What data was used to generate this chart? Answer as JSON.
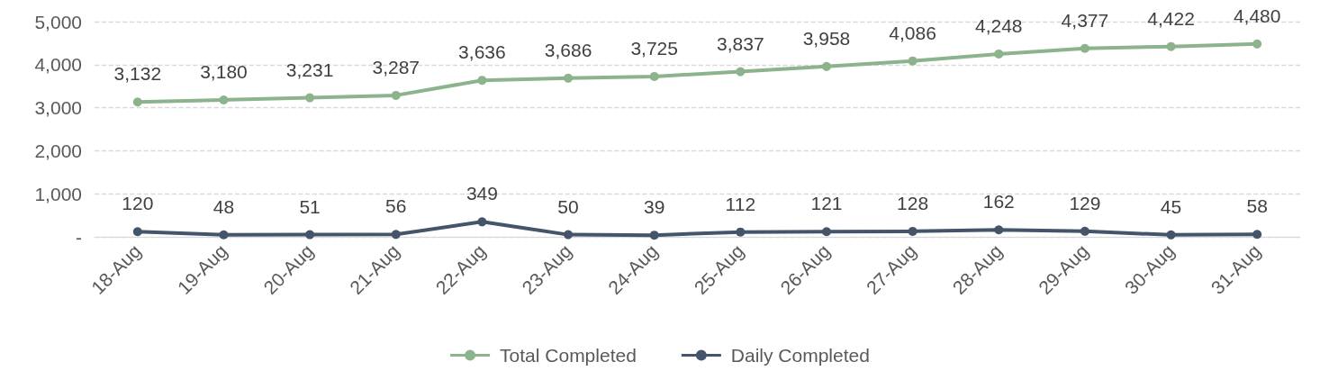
{
  "chart_data": {
    "type": "line",
    "categories": [
      "18-Aug",
      "19-Aug",
      "20-Aug",
      "21-Aug",
      "22-Aug",
      "23-Aug",
      "24-Aug",
      "25-Aug",
      "26-Aug",
      "27-Aug",
      "28-Aug",
      "29-Aug",
      "30-Aug",
      "31-Aug"
    ],
    "series": [
      {
        "name": "Total Completed",
        "color": "#8cb38c",
        "values": [
          3132,
          3180,
          3231,
          3287,
          3636,
          3686,
          3725,
          3837,
          3958,
          4086,
          4248,
          4377,
          4422,
          4480
        ],
        "value_labels": [
          "3,132",
          "3,180",
          "3,231",
          "3,287",
          "3,636",
          "3,686",
          "3,725",
          "3,837",
          "3,958",
          "4,086",
          "4,248",
          "4,377",
          "4,422",
          "4,480"
        ]
      },
      {
        "name": "Daily Completed",
        "color": "#44546a",
        "values": [
          120,
          48,
          51,
          56,
          349,
          50,
          39,
          112,
          121,
          128,
          162,
          129,
          45,
          58
        ],
        "value_labels": [
          "120",
          "48",
          "51",
          "56",
          "349",
          "50",
          "39",
          "112",
          "121",
          "128",
          "162",
          "129",
          "45",
          "58"
        ]
      }
    ],
    "ylim": [
      0,
      5000
    ],
    "yticks": [
      {
        "value": 0,
        "label": "-"
      },
      {
        "value": 1000,
        "label": "1,000"
      },
      {
        "value": 2000,
        "label": "2,000"
      },
      {
        "value": 3000,
        "label": "3,000"
      },
      {
        "value": 4000,
        "label": "4,000"
      },
      {
        "value": 5000,
        "label": "5,000"
      }
    ],
    "grid": "y",
    "legend": "bottom",
    "marker": "circle",
    "line_style": "solid"
  }
}
